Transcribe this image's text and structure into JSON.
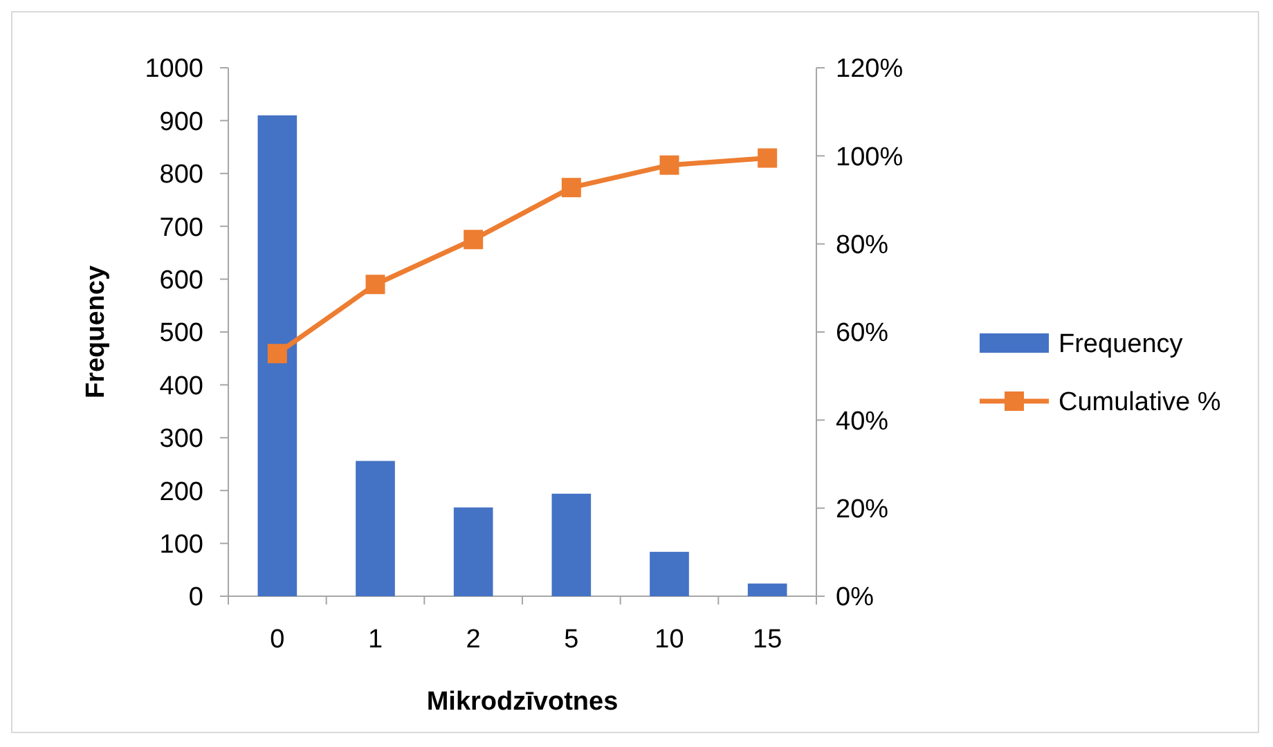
{
  "chart_data": {
    "type": "bar",
    "xlabel": "Mikrodzīvotnes",
    "ylabel": "Frequency",
    "categories": [
      "0",
      "1",
      "2",
      "5",
      "10",
      "15"
    ],
    "series": [
      {
        "name": "Frequency",
        "color": "#4472c4",
        "values": [
          910,
          256,
          168,
          194,
          84,
          24
        ]
      },
      {
        "name": "Cumulative %",
        "type": "line",
        "axis": "y2",
        "color": "#ed7d31",
        "marker": "square",
        "values": [
          55.1,
          70.8,
          81,
          92.8,
          97.9,
          99.5
        ]
      }
    ],
    "ylim": [
      0,
      1000
    ],
    "yticks": [
      0,
      100,
      200,
      300,
      400,
      500,
      600,
      700,
      800,
      900,
      1000
    ],
    "y2lim": [
      0,
      120
    ],
    "y2ticks": [
      {
        "value": 0,
        "label": "0%"
      },
      {
        "value": 20,
        "label": "20%"
      },
      {
        "value": 40,
        "label": "40%"
      },
      {
        "value": 60,
        "label": "60%"
      },
      {
        "value": 80,
        "label": "80%"
      },
      {
        "value": 100,
        "label": "100%"
      },
      {
        "value": 120,
        "label": "120%"
      }
    ],
    "legend": "right"
  }
}
